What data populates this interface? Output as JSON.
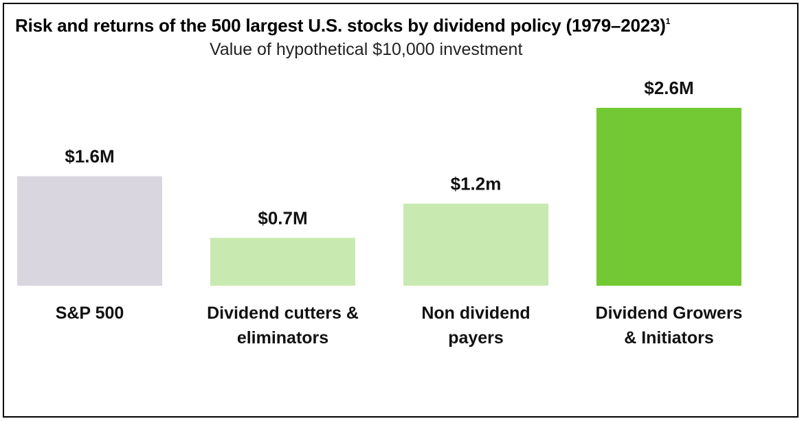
{
  "chart_data": {
    "type": "bar",
    "title": "Risk and returns of the 500 largest U.S. stocks by dividend policy (1979–2023)",
    "title_footnote": "1",
    "subtitle": "Value of hypothetical $10,000 investment",
    "categories": [
      [
        "S&P 500"
      ],
      [
        "Dividend cutters &",
        "eliminators"
      ],
      [
        "Non dividend",
        "payers"
      ],
      [
        "Dividend Growers",
        "& Initiators"
      ]
    ],
    "values": [
      1.6,
      0.7,
      1.2,
      2.6
    ],
    "value_labels": [
      "$1.6M",
      "$0.7M",
      "$1.2m",
      "$2.6M"
    ],
    "colors": [
      "#d9d6e0",
      "#c8eab0",
      "#c8eab0",
      "#72c934"
    ],
    "unit": "$M",
    "xlabel": "",
    "ylabel": "",
    "ylim": [
      0,
      2.6
    ],
    "grid": false,
    "legend": "none"
  }
}
